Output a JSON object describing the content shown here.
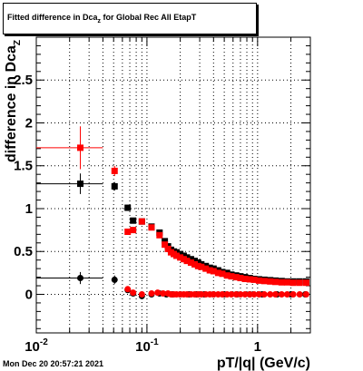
{
  "title": {
    "prefix": "Fitted difference in Dca",
    "subscript": "z",
    "suffix": " for Global Rec All EtapT"
  },
  "timestamp": "Mon Dec 20 20:57:21 2021",
  "colors": {
    "series_red": "#ff0000",
    "series_black": "#000000",
    "grid": "#000000",
    "background": "#ffffff"
  },
  "chart_data": {
    "type": "scatter",
    "xscale": "log",
    "xlim": [
      0.01,
      3.0
    ],
    "ylim": [
      -0.45,
      3.0
    ],
    "grid": true,
    "xlabel": "pT/|q| (GeV/c)",
    "ylabel_main": "difference in Dca",
    "ylabel_sub": "Z",
    "x_ticks": [
      {
        "value": 0.01,
        "base": "10",
        "exp": "-2"
      },
      {
        "value": 0.1,
        "base": "10",
        "exp": "-1"
      },
      {
        "value": 1,
        "base": "1",
        "exp": ""
      }
    ],
    "y_ticks": [
      {
        "value": 0,
        "label": "0"
      },
      {
        "value": 0.5,
        "label": "0.5"
      },
      {
        "value": 1,
        "label": "1"
      },
      {
        "value": 1.5,
        "label": "1.5"
      },
      {
        "value": 2,
        "label": "2"
      },
      {
        "value": 2.5,
        "label": "2.5"
      }
    ],
    "series": [
      {
        "color": "#000000",
        "marker": "square",
        "points": [
          {
            "x": 0.025,
            "y": 1.29,
            "xlo": 0.01,
            "xhi": 0.04,
            "err": 0.12
          },
          {
            "x": 0.051,
            "y": 1.26,
            "err": 0.05
          },
          {
            "x": 0.067,
            "y": 1.01,
            "err": 0.03
          },
          {
            "x": 0.075,
            "y": 0.86
          },
          {
            "x": 0.09,
            "y": 0.85
          },
          {
            "x": 0.11,
            "y": 0.79
          },
          {
            "x": 0.13,
            "y": 0.72
          },
          {
            "x": 0.145,
            "y": 0.62
          },
          {
            "x": 0.155,
            "y": 0.56
          },
          {
            "x": 0.165,
            "y": 0.52
          },
          {
            "x": 0.175,
            "y": 0.5
          },
          {
            "x": 0.185,
            "y": 0.49
          },
          {
            "x": 0.2,
            "y": 0.47
          },
          {
            "x": 0.215,
            "y": 0.45
          },
          {
            "x": 0.23,
            "y": 0.43
          },
          {
            "x": 0.25,
            "y": 0.41
          },
          {
            "x": 0.27,
            "y": 0.39
          },
          {
            "x": 0.29,
            "y": 0.37
          },
          {
            "x": 0.31,
            "y": 0.35
          },
          {
            "x": 0.34,
            "y": 0.33
          },
          {
            "x": 0.37,
            "y": 0.31
          },
          {
            "x": 0.4,
            "y": 0.3
          },
          {
            "x": 0.44,
            "y": 0.28
          },
          {
            "x": 0.48,
            "y": 0.26
          },
          {
            "x": 0.53,
            "y": 0.25
          },
          {
            "x": 0.58,
            "y": 0.23
          },
          {
            "x": 0.64,
            "y": 0.22
          },
          {
            "x": 0.7,
            "y": 0.21
          },
          {
            "x": 0.77,
            "y": 0.2
          },
          {
            "x": 0.85,
            "y": 0.19
          },
          {
            "x": 0.93,
            "y": 0.18
          },
          {
            "x": 1.03,
            "y": 0.175
          },
          {
            "x": 1.15,
            "y": 0.17
          },
          {
            "x": 1.3,
            "y": 0.165
          },
          {
            "x": 1.45,
            "y": 0.16
          },
          {
            "x": 1.65,
            "y": 0.155
          },
          {
            "x": 1.85,
            "y": 0.15
          },
          {
            "x": 2.1,
            "y": 0.15
          },
          {
            "x": 2.4,
            "y": 0.15
          },
          {
            "x": 2.75,
            "y": 0.15
          }
        ]
      },
      {
        "color": "#ff0000",
        "marker": "square",
        "points": [
          {
            "x": 0.025,
            "y": 1.71,
            "xlo": 0.01,
            "xhi": 0.04,
            "err": 0.25
          },
          {
            "x": 0.051,
            "y": 1.44,
            "err": 0.06
          },
          {
            "x": 0.067,
            "y": 0.73
          },
          {
            "x": 0.075,
            "y": 0.75
          },
          {
            "x": 0.09,
            "y": 0.85
          },
          {
            "x": 0.11,
            "y": 0.78
          },
          {
            "x": 0.13,
            "y": 0.69
          },
          {
            "x": 0.145,
            "y": 0.58
          },
          {
            "x": 0.155,
            "y": 0.53
          },
          {
            "x": 0.165,
            "y": 0.49
          },
          {
            "x": 0.175,
            "y": 0.47
          },
          {
            "x": 0.185,
            "y": 0.45
          },
          {
            "x": 0.2,
            "y": 0.43
          },
          {
            "x": 0.215,
            "y": 0.41
          },
          {
            "x": 0.23,
            "y": 0.39
          },
          {
            "x": 0.25,
            "y": 0.37
          },
          {
            "x": 0.27,
            "y": 0.35
          },
          {
            "x": 0.29,
            "y": 0.33
          },
          {
            "x": 0.31,
            "y": 0.32
          },
          {
            "x": 0.34,
            "y": 0.3
          },
          {
            "x": 0.37,
            "y": 0.28
          },
          {
            "x": 0.4,
            "y": 0.27
          },
          {
            "x": 0.44,
            "y": 0.25
          },
          {
            "x": 0.48,
            "y": 0.24
          },
          {
            "x": 0.53,
            "y": 0.22
          },
          {
            "x": 0.58,
            "y": 0.21
          },
          {
            "x": 0.64,
            "y": 0.2
          },
          {
            "x": 0.7,
            "y": 0.19
          },
          {
            "x": 0.77,
            "y": 0.18
          },
          {
            "x": 0.85,
            "y": 0.175
          },
          {
            "x": 0.93,
            "y": 0.17
          },
          {
            "x": 1.03,
            "y": 0.16
          },
          {
            "x": 1.15,
            "y": 0.155
          },
          {
            "x": 1.3,
            "y": 0.15
          },
          {
            "x": 1.45,
            "y": 0.145
          },
          {
            "x": 1.65,
            "y": 0.14
          },
          {
            "x": 1.85,
            "y": 0.14
          },
          {
            "x": 2.1,
            "y": 0.135
          },
          {
            "x": 2.4,
            "y": 0.135
          },
          {
            "x": 2.75,
            "y": 0.135
          }
        ]
      },
      {
        "color": "#000000",
        "marker": "circle",
        "points": [
          {
            "x": 0.025,
            "y": 0.19,
            "xlo": 0.01,
            "xhi": 0.04,
            "err": 0.07
          },
          {
            "x": 0.051,
            "y": 0.17,
            "err": 0.05
          },
          {
            "x": 0.067,
            "y": 0.05
          },
          {
            "x": 0.075,
            "y": 0.01
          },
          {
            "x": 0.09,
            "y": -0.02
          },
          {
            "x": 0.11,
            "y": 0.0
          },
          {
            "x": 0.13,
            "y": 0.01
          },
          {
            "x": 0.15,
            "y": 0.0
          },
          {
            "x": 0.17,
            "y": 0.0
          },
          {
            "x": 0.2,
            "y": 0.0
          },
          {
            "x": 0.24,
            "y": 0.0
          },
          {
            "x": 0.28,
            "y": 0.0
          },
          {
            "x": 0.33,
            "y": 0.0
          },
          {
            "x": 0.4,
            "y": 0.0
          },
          {
            "x": 0.5,
            "y": 0.0
          },
          {
            "x": 0.65,
            "y": 0.0
          },
          {
            "x": 0.85,
            "y": 0.0
          },
          {
            "x": 1.1,
            "y": 0.0
          },
          {
            "x": 1.5,
            "y": 0.0
          },
          {
            "x": 2.0,
            "y": 0.0
          },
          {
            "x": 2.7,
            "y": 0.0
          }
        ]
      },
      {
        "color": "#ff0000",
        "marker": "circle",
        "points": [
          {
            "x": 0.067,
            "y": 0.06
          },
          {
            "x": 0.075,
            "y": 0.02
          },
          {
            "x": 0.09,
            "y": 0.0
          },
          {
            "x": 0.11,
            "y": 0.01
          },
          {
            "x": 0.125,
            "y": 0.02
          },
          {
            "x": 0.14,
            "y": 0.01
          },
          {
            "x": 0.155,
            "y": 0.01
          },
          {
            "x": 0.165,
            "y": 0.0
          },
          {
            "x": 0.175,
            "y": 0.0
          },
          {
            "x": 0.185,
            "y": 0.0
          },
          {
            "x": 0.2,
            "y": 0.0
          },
          {
            "x": 0.215,
            "y": 0.0
          },
          {
            "x": 0.23,
            "y": 0.0
          },
          {
            "x": 0.25,
            "y": 0.0
          },
          {
            "x": 0.27,
            "y": 0.0
          },
          {
            "x": 0.29,
            "y": 0.0
          },
          {
            "x": 0.31,
            "y": 0.0
          },
          {
            "x": 0.34,
            "y": 0.0
          },
          {
            "x": 0.37,
            "y": 0.0
          },
          {
            "x": 0.4,
            "y": 0.0
          },
          {
            "x": 0.44,
            "y": 0.0
          },
          {
            "x": 0.48,
            "y": 0.0
          },
          {
            "x": 0.53,
            "y": 0.0
          },
          {
            "x": 0.58,
            "y": 0.0
          },
          {
            "x": 0.64,
            "y": 0.0
          },
          {
            "x": 0.7,
            "y": 0.0
          },
          {
            "x": 0.77,
            "y": 0.0
          },
          {
            "x": 0.85,
            "y": 0.0
          },
          {
            "x": 0.93,
            "y": 0.0
          },
          {
            "x": 1.03,
            "y": 0.0
          },
          {
            "x": 1.15,
            "y": 0.0
          },
          {
            "x": 1.3,
            "y": 0.0
          },
          {
            "x": 1.45,
            "y": 0.0
          },
          {
            "x": 1.65,
            "y": 0.0
          },
          {
            "x": 1.85,
            "y": 0.0
          },
          {
            "x": 2.1,
            "y": 0.0
          },
          {
            "x": 2.4,
            "y": 0.0
          },
          {
            "x": 2.75,
            "y": 0.0
          }
        ]
      }
    ]
  }
}
